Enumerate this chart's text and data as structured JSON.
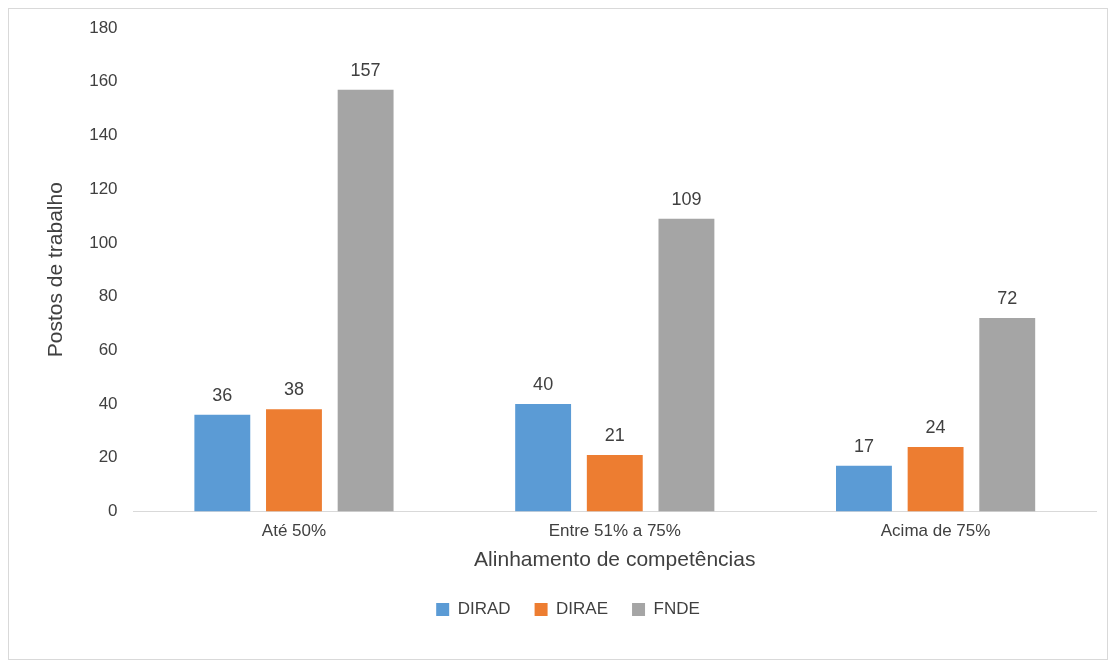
{
  "chart_data": {
    "type": "bar",
    "xlabel": "Alinhamento de competências",
    "ylabel": "Postos de trabalho",
    "categories": [
      "Até 50%",
      "Entre 51% a 75%",
      "Acima de 75%"
    ],
    "series": [
      {
        "name": "DIRAD",
        "color": "#5b9bd5",
        "values": [
          36,
          40,
          17
        ]
      },
      {
        "name": "DIRAE",
        "color": "#ed7d31",
        "values": [
          38,
          21,
          24
        ]
      },
      {
        "name": "FNDE",
        "color": "#a5a5a5",
        "values": [
          157,
          109,
          72
        ]
      }
    ],
    "ylim": [
      0,
      180
    ],
    "yticks": [
      0,
      20,
      40,
      60,
      80,
      100,
      120,
      140,
      160,
      180
    ],
    "grid": false,
    "legend": "bottom",
    "data_labels": true
  }
}
